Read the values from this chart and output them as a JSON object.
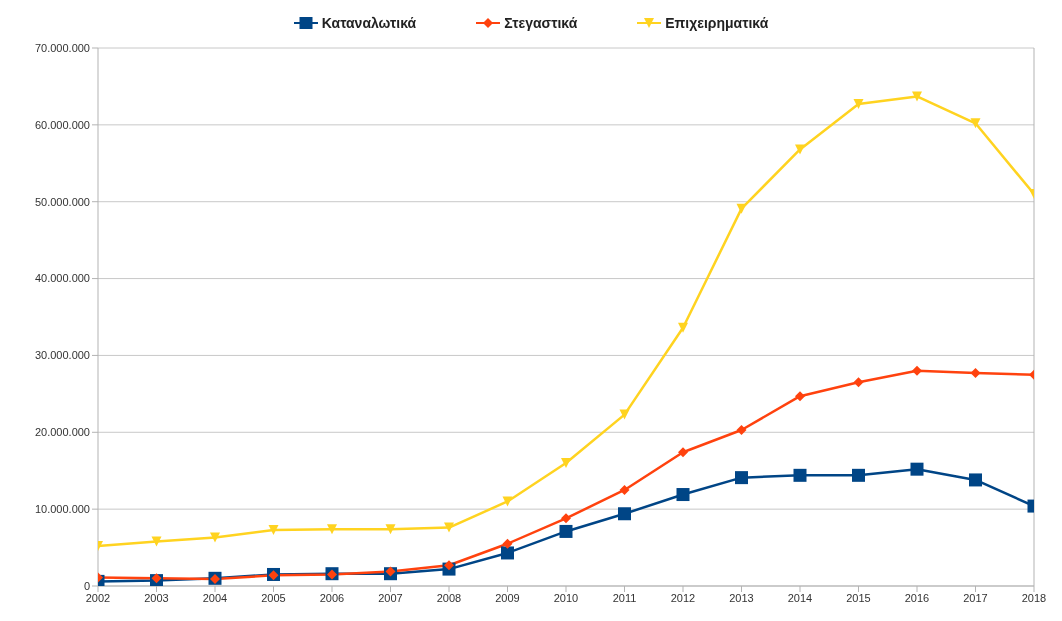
{
  "chart_data": {
    "type": "line",
    "categories": [
      "2002",
      "2003",
      "2004",
      "2005",
      "2006",
      "2007",
      "2008",
      "2009",
      "2010",
      "2011",
      "2012",
      "2013",
      "2014",
      "2015",
      "2016",
      "2017",
      "2018"
    ],
    "series": [
      {
        "name": "Καταναλωτικά",
        "color": "#004586",
        "marker": "square",
        "values": [
          600000,
          700000,
          1000000,
          1500000,
          1600000,
          1600000,
          2200000,
          4300000,
          7100000,
          9400000,
          11900000,
          14100000,
          14400000,
          14400000,
          15200000,
          13800000,
          10400000
        ]
      },
      {
        "name": "Στεγαστικά",
        "color": "#ff420e",
        "marker": "diamond",
        "values": [
          1100000,
          1000000,
          900000,
          1400000,
          1500000,
          1900000,
          2700000,
          5500000,
          8800000,
          12500000,
          17400000,
          20300000,
          24700000,
          26500000,
          28000000,
          27700000,
          27500000
        ]
      },
      {
        "name": "Επιχειρηματικά",
        "color": "#ffd320",
        "marker": "triangle",
        "values": [
          5200000,
          5800000,
          6300000,
          7300000,
          7400000,
          7400000,
          7600000,
          11000000,
          16000000,
          22300000,
          33600000,
          49100000,
          56800000,
          62700000,
          63700000,
          60200000,
          51000000
        ]
      }
    ],
    "ylim": [
      0,
      70000000
    ],
    "yticks": [
      0,
      {
        "value": 10000000,
        "label": "10.000.000"
      },
      {
        "value": 20000000,
        "label": "20.000.000"
      },
      {
        "value": 30000000,
        "label": "30.000.000"
      },
      {
        "value": 40000000,
        "label": "40.000.000"
      },
      {
        "value": 50000000,
        "label": "50.000.000"
      },
      {
        "value": 60000000,
        "label": "60.000.000"
      },
      {
        "value": 70000000,
        "label": "70.000.000"
      }
    ],
    "grid": "y",
    "legend": "top",
    "line_style": "solid"
  }
}
